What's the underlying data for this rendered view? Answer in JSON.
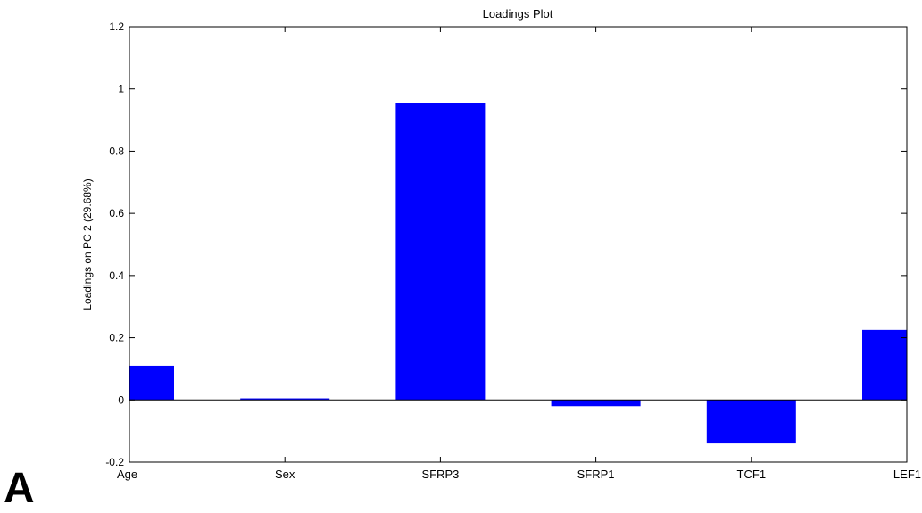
{
  "panel_label": "A",
  "colors": {
    "bar": "#0000ff",
    "axis": "#000000"
  },
  "chart_data": {
    "type": "bar",
    "title": "Loadings Plot",
    "xlabel": "",
    "ylabel": "Loadings on PC 2 (29.68%)",
    "categories": [
      "Age",
      "Sex",
      "SFRP3",
      "SFRP1",
      "TCF1",
      "LEF1"
    ],
    "values": [
      0.11,
      0.005,
      0.955,
      -0.02,
      -0.14,
      0.225
    ],
    "ylim": [
      -0.2,
      1.2
    ],
    "yticks": [
      -0.2,
      0,
      0.2,
      0.4,
      0.6,
      0.8,
      1,
      1.2
    ],
    "ytick_labels": [
      "-0.2",
      "0",
      "0.2",
      "0.4",
      "0.6",
      "0.8",
      "1",
      "1.2"
    ],
    "grid": false,
    "legend": "none"
  }
}
